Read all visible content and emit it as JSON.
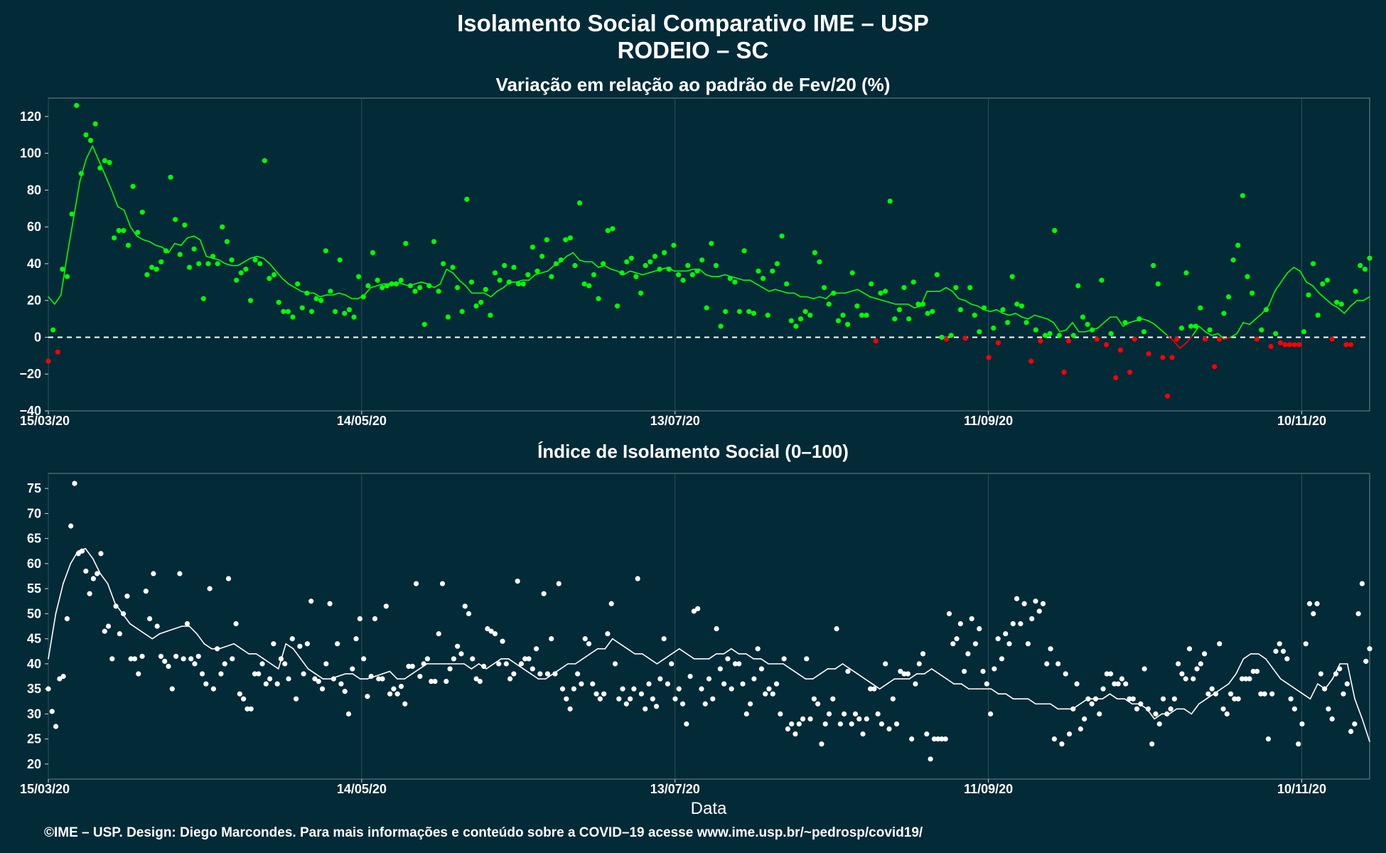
{
  "title_line1": "Isolamento Social Comparativo IME – USP",
  "title_line2": "RODEIO – SC",
  "footer": "©IME – USP. Design: Diego Marcondes. Para mais informações e conteúdo sobre a COVID–19 acesse www.ime.usp.br/~pedrosp/covid19/",
  "colors": {
    "background": "#022a37",
    "positive": "#00ff00",
    "negative": "#ff0000",
    "index": "#ffffff"
  },
  "chart_data": [
    {
      "type": "scatter",
      "title": "Variação em relação ao padrão de Fev/20 (%)",
      "xlabel": "",
      "ylabel": "",
      "x_start": "15/03/20",
      "x_range_days": [
        0,
        253
      ],
      "x_ticks": [
        {
          "day": 0,
          "label": "15/03/20"
        },
        {
          "day": 60,
          "label": "14/05/20"
        },
        {
          "day": 120,
          "label": "13/07/20"
        },
        {
          "day": 180,
          "label": "11/09/20"
        },
        {
          "day": 240,
          "label": "10/11/20"
        }
      ],
      "ylim": [
        -40,
        130
      ],
      "y_ticks": [
        -40,
        -20,
        0,
        20,
        40,
        60,
        80,
        100,
        120
      ],
      "reference_line": 0,
      "series": [
        {
          "name": "",
          "style": "points",
          "values": [
            -13,
            4,
            -8,
            37,
            33,
            67,
            126,
            89,
            110,
            107,
            116,
            92,
            96,
            95,
            54,
            58,
            58,
            50,
            82,
            57,
            68,
            34,
            38,
            37,
            41,
            47,
            87,
            64,
            45,
            61,
            38,
            48,
            40,
            21,
            40,
            44,
            40,
            60,
            52,
            42,
            31,
            35,
            37,
            20,
            42,
            40,
            96,
            32,
            34,
            19,
            14,
            14,
            11,
            29,
            16,
            24,
            14,
            21,
            20,
            47,
            25,
            14,
            42,
            13,
            15,
            11,
            33,
            22,
            28,
            46,
            31,
            27,
            28,
            29,
            29,
            31,
            51,
            28,
            25,
            27,
            7,
            28,
            52,
            25,
            40,
            11,
            38,
            27,
            14,
            75,
            30,
            17,
            19,
            26,
            12,
            35,
            31,
            39,
            30,
            38,
            29,
            29,
            34,
            49,
            36,
            44,
            53,
            33,
            40,
            42,
            53,
            54,
            39,
            73,
            29,
            28,
            34,
            21,
            40,
            58,
            59,
            17,
            35,
            41,
            43,
            33,
            24,
            39,
            41,
            44,
            37,
            46,
            37,
            50,
            34,
            31,
            39,
            34,
            36,
            42,
            16,
            51,
            39,
            6,
            14,
            32,
            30,
            14,
            47,
            14,
            13,
            36,
            32,
            12,
            36,
            40,
            55,
            29,
            9,
            6,
            10,
            14,
            12,
            46,
            41,
            27,
            18,
            24,
            9,
            12,
            7,
            35,
            17,
            12,
            12,
            29,
            -2,
            24,
            25,
            74,
            10,
            15,
            27,
            10,
            30,
            18,
            18,
            13,
            14,
            34,
            0,
            -1,
            1,
            27,
            15,
            -0.5,
            27,
            12,
            3,
            16,
            -11,
            5,
            -3,
            15,
            8,
            33,
            18,
            17,
            8,
            -13,
            4,
            -2,
            1,
            2,
            58,
            1,
            -19,
            -2,
            1,
            28,
            11,
            7,
            4,
            -1,
            31,
            -4,
            2,
            -22,
            -7,
            8,
            -19,
            -1,
            10,
            3,
            -9,
            39,
            29,
            -11,
            -32,
            -11,
            -1,
            5,
            35,
            6,
            6,
            16,
            -1,
            4,
            -16,
            -1,
            13,
            22,
            42,
            50,
            77,
            33,
            24,
            -1,
            4,
            15,
            -5,
            2,
            -3,
            -4,
            -4,
            -4,
            -4,
            3,
            23,
            40,
            12,
            29,
            31,
            -1,
            19,
            18,
            -4,
            -4,
            25,
            39,
            37,
            43
          ]
        },
        {
          "name": "",
          "style": "line",
          "values": [
            22,
            18,
            23,
            45,
            65,
            85,
            97,
            104,
            96,
            88,
            80,
            71,
            69,
            60,
            55,
            53,
            52,
            50,
            49,
            46,
            51,
            50,
            54,
            55,
            53,
            44,
            43,
            42,
            40,
            39,
            39,
            41,
            43,
            44,
            43,
            40,
            36,
            32,
            29,
            27,
            25,
            24,
            24,
            22,
            23,
            23,
            24,
            23,
            21,
            21,
            23,
            27,
            28,
            29,
            29,
            30,
            29,
            28,
            29,
            30,
            29,
            27,
            29,
            37,
            35,
            31,
            28,
            24,
            24,
            24,
            22,
            25,
            27,
            30,
            30,
            31,
            31,
            34,
            35,
            36,
            39,
            41,
            44,
            46,
            42,
            41,
            41,
            38,
            39,
            37,
            36,
            34,
            36,
            35,
            34,
            35,
            36,
            37,
            38,
            36,
            36,
            36,
            37,
            37,
            34,
            33,
            33,
            34,
            33,
            32,
            31,
            31,
            29,
            27,
            25,
            26,
            25,
            24,
            24,
            22,
            22,
            21,
            22,
            21,
            24,
            24,
            24,
            25,
            26,
            24,
            22,
            21,
            20,
            19,
            18,
            18,
            18,
            16,
            17,
            25,
            25,
            25,
            27,
            25,
            21,
            20,
            18,
            17,
            15,
            14,
            15,
            13,
            12,
            13,
            11,
            10,
            12,
            11,
            10,
            8,
            3,
            4,
            8,
            3,
            3,
            4,
            5,
            8,
            11,
            11,
            6,
            8,
            9,
            10,
            9,
            7,
            4,
            1,
            -2,
            -6,
            -3,
            1,
            6,
            3,
            1,
            2,
            -1,
            0,
            2,
            8,
            7,
            10,
            13,
            17,
            25,
            30,
            35,
            38,
            36,
            30,
            28,
            24,
            21,
            18,
            16,
            13,
            17,
            20,
            20,
            22
          ]
        }
      ]
    },
    {
      "type": "scatter",
      "title": "Índice de Isolamento Social (0–100)",
      "xlabel": "Data",
      "ylabel": "",
      "x_start": "15/03/20",
      "x_range_days": [
        0,
        253
      ],
      "x_ticks": [
        {
          "day": 0,
          "label": "15/03/20"
        },
        {
          "day": 60,
          "label": "14/05/20"
        },
        {
          "day": 120,
          "label": "13/07/20"
        },
        {
          "day": 180,
          "label": "11/09/20"
        },
        {
          "day": 240,
          "label": "10/11/20"
        }
      ],
      "ylim": [
        17,
        78
      ],
      "y_ticks": [
        20,
        25,
        30,
        35,
        40,
        45,
        50,
        55,
        60,
        65,
        70,
        75
      ],
      "series": [
        {
          "name": "",
          "style": "points",
          "values": [
            35,
            30.5,
            27.5,
            37,
            37.5,
            49,
            67.5,
            76,
            62,
            62.5,
            58.5,
            54,
            57,
            58,
            62,
            46.5,
            47.5,
            41,
            51.5,
            46,
            50,
            53.5,
            41,
            41,
            38,
            41.5,
            54.5,
            49,
            58,
            47.5,
            41.5,
            40.5,
            39.5,
            35,
            41.5,
            58,
            41,
            48,
            41,
            40,
            41.5,
            38,
            36,
            55,
            35,
            43,
            38,
            40,
            57,
            41,
            48,
            34,
            33,
            31,
            31,
            38,
            38,
            40,
            36,
            37,
            44,
            36,
            41,
            40,
            37,
            45,
            33,
            43.5,
            38,
            44,
            52.5,
            37,
            36.5,
            35,
            40,
            52,
            37,
            44,
            36,
            34.5,
            30,
            39,
            45,
            49,
            41,
            33.5,
            37.5,
            49,
            37,
            37,
            51.5,
            34,
            35,
            34,
            35.5,
            32,
            39.5,
            39.5,
            56,
            37.5,
            40,
            41,
            36.5,
            36.5,
            46,
            56,
            36.5,
            39,
            41,
            43.5,
            42,
            51.5,
            50,
            41,
            37,
            36.5,
            39.5,
            47,
            46.5,
            46,
            40,
            44.5,
            40,
            37,
            38,
            56.5,
            40,
            41,
            41,
            39,
            43,
            38,
            54,
            38,
            45,
            38,
            56,
            35,
            33,
            31,
            35,
            38,
            36,
            45,
            44,
            36,
            34,
            33,
            34,
            46,
            52,
            40,
            33,
            35,
            32,
            33,
            35,
            57,
            34,
            31,
            36,
            33,
            31.5,
            37,
            45,
            36,
            40,
            33,
            35,
            32,
            28,
            37.5,
            50.5,
            51,
            35,
            32,
            37,
            33,
            47,
            39,
            36,
            41,
            35,
            40,
            40,
            36,
            30,
            32,
            37,
            43,
            39,
            34,
            35,
            34,
            36,
            30,
            41,
            27,
            28,
            26,
            28,
            29,
            41,
            29,
            33,
            32,
            24,
            28,
            30,
            33,
            47,
            28,
            30,
            38.5,
            28,
            30,
            29,
            26,
            29,
            35,
            35,
            30,
            28,
            40,
            27,
            33,
            28,
            38.5,
            38,
            38,
            25,
            36,
            40,
            42,
            26,
            21,
            25,
            25,
            25,
            25,
            50,
            44,
            45,
            48,
            38.5,
            42,
            49,
            44,
            47,
            38.5,
            36,
            30,
            39,
            45,
            41,
            46,
            44,
            48,
            53,
            48,
            52,
            44,
            49,
            52.5,
            50.5,
            52,
            40,
            43,
            25,
            40,
            24,
            38,
            26,
            31,
            36,
            27,
            29,
            33,
            32,
            33,
            30,
            35,
            38,
            38,
            36,
            36,
            37,
            36,
            33,
            33,
            31,
            32,
            39,
            31,
            24,
            30,
            28,
            33,
            30,
            31,
            33,
            40,
            38,
            37,
            43,
            37,
            39,
            40,
            42,
            34,
            35,
            34,
            44,
            31,
            30,
            34,
            33,
            33,
            37,
            37,
            37,
            38.5,
            38.5,
            34,
            34,
            25,
            34,
            42.5,
            44,
            42.5,
            41,
            33,
            31,
            24,
            28,
            44,
            52,
            50,
            52,
            38,
            35,
            31,
            29,
            38,
            39,
            34,
            36,
            26.5,
            28,
            50,
            56,
            40.5,
            43
          ]
        },
        {
          "name": "",
          "style": "line",
          "values": [
            41,
            50,
            56,
            60,
            62.5,
            63,
            61,
            58,
            56,
            52,
            50,
            48,
            47,
            46,
            45,
            46,
            46.5,
            47,
            47.5,
            47.5,
            46,
            44,
            43,
            43,
            43.5,
            44,
            43,
            42,
            42,
            41,
            40,
            39,
            44,
            43,
            41,
            39,
            38,
            37,
            37,
            37.5,
            38,
            38,
            37,
            37,
            37.5,
            38,
            38.5,
            37,
            37,
            38,
            39,
            40,
            40,
            40,
            40,
            40,
            40,
            39,
            40,
            39,
            40,
            41,
            41,
            40,
            39,
            38,
            37,
            37,
            38,
            39,
            40,
            40,
            41,
            42,
            43,
            43,
            45,
            44,
            43,
            42,
            42,
            41,
            40,
            41,
            42,
            43,
            42,
            41,
            41,
            41,
            42,
            42,
            43,
            42,
            42,
            41,
            41,
            40,
            40,
            40,
            39,
            38,
            37,
            37,
            38,
            39,
            39,
            40,
            39,
            38,
            37,
            36,
            35,
            36,
            37,
            37,
            37,
            38,
            38,
            39,
            38,
            37,
            36,
            36,
            35,
            35,
            35,
            35,
            34,
            34,
            33,
            33,
            33,
            32,
            32,
            32,
            31,
            31,
            31,
            32,
            33,
            33,
            33,
            34,
            33,
            33,
            32,
            32,
            31,
            29,
            30,
            30,
            31,
            31,
            30,
            32,
            33,
            34,
            35,
            36,
            38,
            41,
            42,
            42,
            41,
            39,
            37,
            36,
            35,
            34,
            33,
            36,
            35,
            37,
            40,
            40,
            33,
            29,
            24.5
          ]
        }
      ]
    }
  ]
}
